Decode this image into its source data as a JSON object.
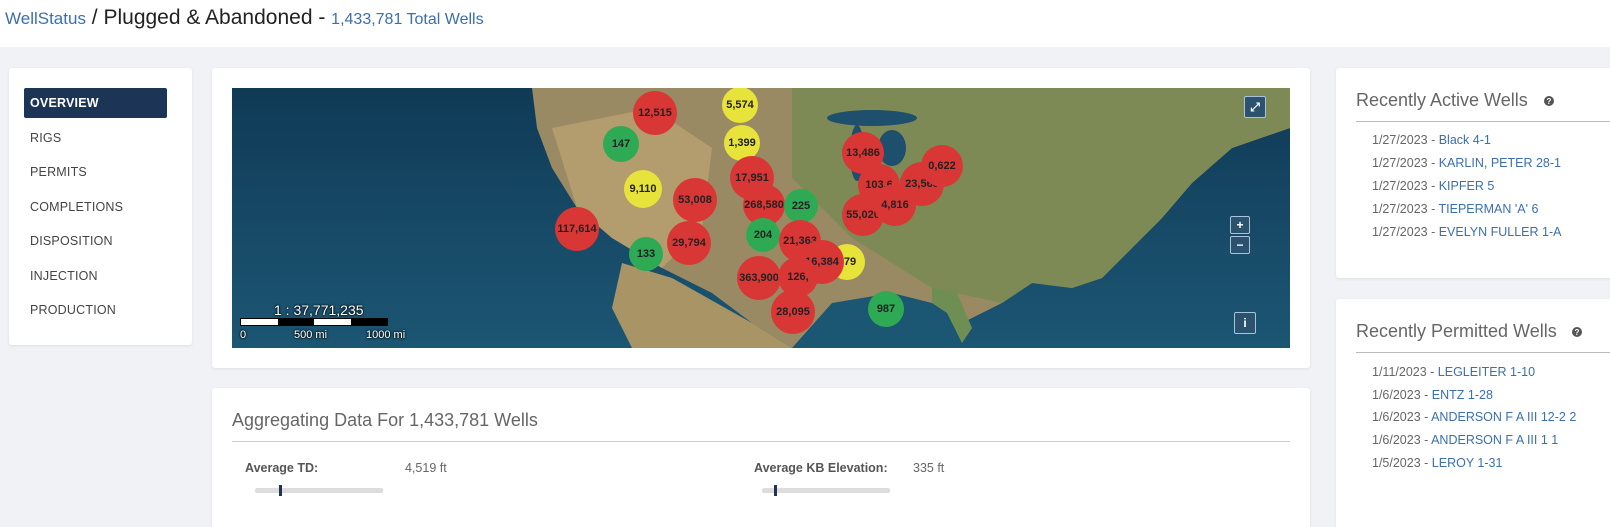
{
  "header": {
    "breadcrumb_link": "WellStatus",
    "separator": " / ",
    "title": "Plugged & Abandoned",
    "dash": " - ",
    "total_wells": "1,433,781 Total Wells"
  },
  "nav": {
    "items": [
      {
        "label": "OVERVIEW",
        "active": true
      },
      {
        "label": "RIGS",
        "active": false
      },
      {
        "label": "PERMITS",
        "active": false
      },
      {
        "label": "COMPLETIONS",
        "active": false
      },
      {
        "label": "DISPOSITION",
        "active": false
      },
      {
        "label": "INJECTION",
        "active": false
      },
      {
        "label": "PRODUCTION",
        "active": false
      }
    ]
  },
  "map": {
    "clusters": [
      {
        "label": "12,515",
        "color": "red"
      },
      {
        "label": "5,574",
        "color": "yellow"
      },
      {
        "label": "147",
        "color": "green"
      },
      {
        "label": "1,399",
        "color": "yellow"
      },
      {
        "label": "9,110",
        "color": "yellow"
      },
      {
        "label": "53,008",
        "color": "red"
      },
      {
        "label": "17,951",
        "color": "red"
      },
      {
        "label": "268,580",
        "color": "red"
      },
      {
        "label": "225",
        "color": "green"
      },
      {
        "label": "117,614",
        "color": "red"
      },
      {
        "label": "133",
        "color": "green"
      },
      {
        "label": "29,794",
        "color": "red"
      },
      {
        "label": "204",
        "color": "green"
      },
      {
        "label": "21,363",
        "color": "red"
      },
      {
        "label": "779",
        "color": "yellow"
      },
      {
        "label": "16,384",
        "color": "red"
      },
      {
        "label": "363,900",
        "color": "red"
      },
      {
        "label": "126,",
        "color": "red"
      },
      {
        "label": "28,095",
        "color": "red"
      },
      {
        "label": "987",
        "color": "green"
      },
      {
        "label": "13,486",
        "color": "red"
      },
      {
        "label": "103,6",
        "color": "red"
      },
      {
        "label": "55,020",
        "color": "red"
      },
      {
        "label": "4,816",
        "color": "red"
      },
      {
        "label": "23,565",
        "color": "red"
      },
      {
        "label": "0,622",
        "color": "red"
      }
    ],
    "scale_ratio": "1 : 37,771,235",
    "scale_labels": [
      "0",
      "500 mi",
      "1000 mi"
    ],
    "buttons": {
      "expand": "⤢",
      "zoom_in": "+",
      "zoom_out": "−",
      "info": "i"
    },
    "colors": {
      "red": "#d93636",
      "yellow": "#e8e33a",
      "green": "#2eaa55"
    }
  },
  "aggregate": {
    "title": "Aggregating Data For 1,433,781 Wells",
    "stats": [
      {
        "label": "Average TD:",
        "value": "4,519 ft",
        "level": 0.1
      },
      {
        "label": "Average KB Elevation:",
        "value": "335 ft",
        "level": 0.0
      }
    ]
  },
  "recent_active": {
    "title": "Recently Active Wells",
    "help": "?",
    "wells": [
      {
        "date": "1/27/2023",
        "name": "Black 4-1"
      },
      {
        "date": "1/27/2023",
        "name": "KARLIN, PETER 28-1"
      },
      {
        "date": "1/27/2023",
        "name": "KIPFER 5"
      },
      {
        "date": "1/27/2023",
        "name": "TIEPERMAN 'A' 6"
      },
      {
        "date": "1/27/2023",
        "name": "EVELYN FULLER 1-A"
      }
    ]
  },
  "recent_permitted": {
    "title": "Recently Permitted Wells",
    "help": "?",
    "wells": [
      {
        "date": "1/11/2023",
        "name": "LEGLEITER 1-10"
      },
      {
        "date": "1/6/2023",
        "name": "ENTZ 1-28"
      },
      {
        "date": "1/6/2023",
        "name": "ANDERSON F A III 12-2 2"
      },
      {
        "date": "1/6/2023",
        "name": "ANDERSON F A III 1 1"
      },
      {
        "date": "1/5/2023",
        "name": "LEROY 1-31"
      }
    ]
  },
  "row_separator": " - "
}
